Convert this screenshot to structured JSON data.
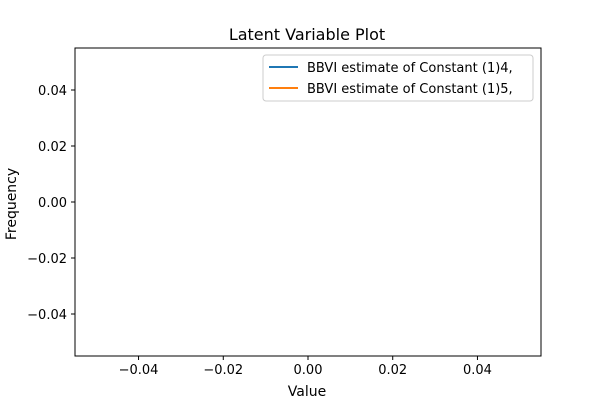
{
  "chart_data": {
    "type": "line",
    "title": "Latent Variable Plot",
    "xlabel": "Value",
    "ylabel": "Frequency",
    "xlim": [
      -0.055,
      0.055
    ],
    "ylim": [
      -0.055,
      0.055
    ],
    "x_ticks": [
      -0.04,
      -0.02,
      0.0,
      0.02,
      0.04
    ],
    "x_tick_labels": [
      "−0.04",
      "−0.02",
      "0.00",
      "0.02",
      "0.04"
    ],
    "y_ticks": [
      -0.04,
      -0.02,
      0.0,
      0.02,
      0.04
    ],
    "y_tick_labels": [
      "−0.04",
      "−0.02",
      "0.00",
      "0.02",
      "0.04"
    ],
    "grid": false,
    "legend_position": "top-right",
    "series": [
      {
        "name": "BBVI estimate of Constant (1)4,",
        "color": "#1f77b4",
        "x": [],
        "y": []
      },
      {
        "name": "BBVI estimate of Constant (1)5,",
        "color": "#ff7f0e",
        "x": [],
        "y": []
      }
    ]
  }
}
